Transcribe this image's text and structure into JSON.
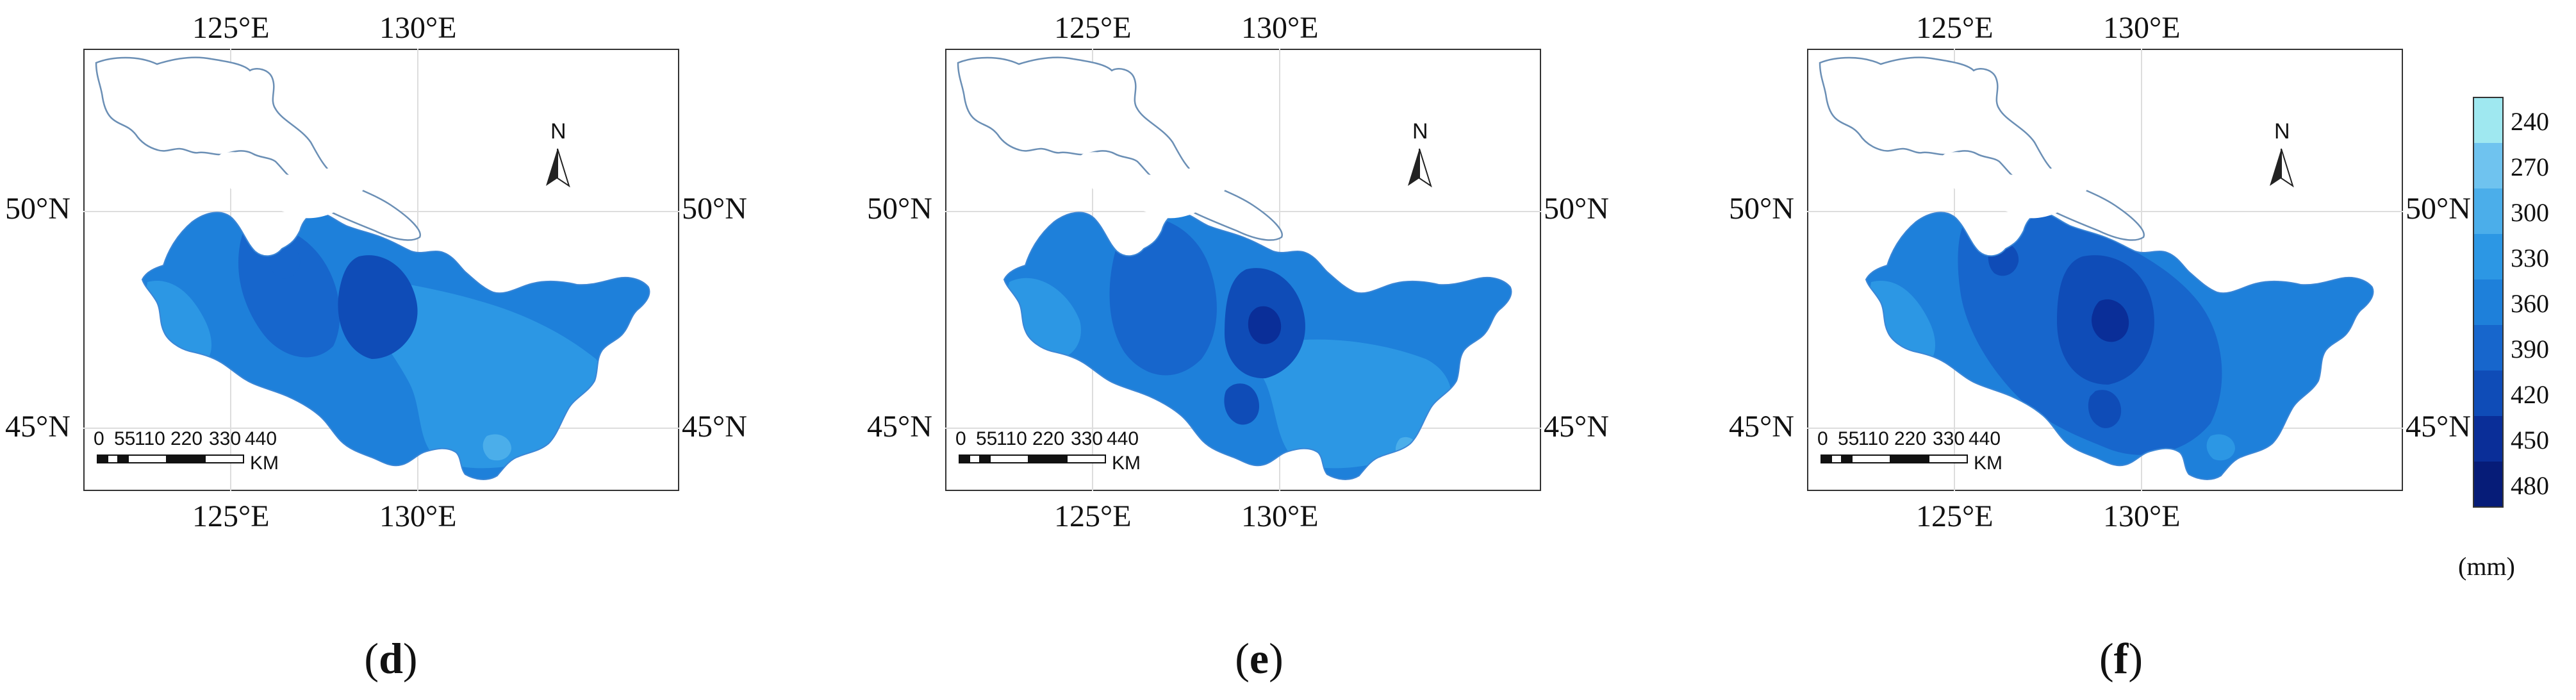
{
  "coords": {
    "lon_left": "125°E",
    "lon_right": "130°E",
    "lat_upper": "50°N",
    "lat_lower": "45°N"
  },
  "north_arrow": "N",
  "scalebar": {
    "ticks": [
      "0",
      "55",
      "110",
      "220",
      "330",
      "440"
    ],
    "unit": "KM"
  },
  "panels": [
    {
      "letter": "d",
      "open": "(",
      "close": ")"
    },
    {
      "letter": "e",
      "open": "(",
      "close": ")"
    },
    {
      "letter": "f",
      "open": "(",
      "close": ")"
    }
  ],
  "legend": {
    "unit": "(mm)",
    "values": [
      "240",
      "270",
      "300",
      "330",
      "360",
      "390",
      "420",
      "450",
      "480"
    ],
    "colors": [
      "#9FE8F0",
      "#6FC3EF",
      "#4BAEEA",
      "#2C97E4",
      "#1E80DA",
      "#1766CC",
      "#0F4CB7",
      "#0A2E98",
      "#061C78"
    ]
  }
}
